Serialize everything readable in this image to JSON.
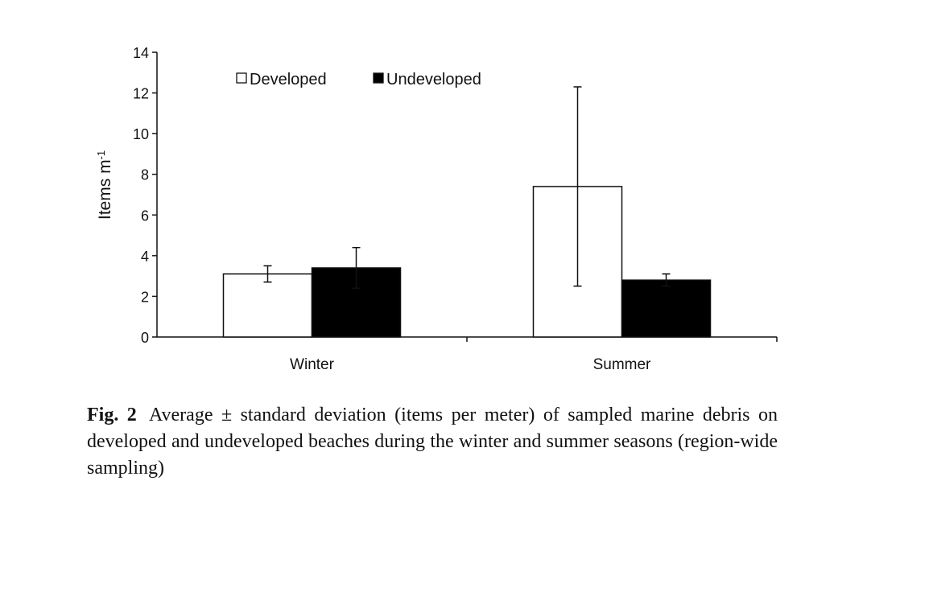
{
  "chart_data": {
    "type": "bar",
    "categories": [
      "Winter",
      "Summer"
    ],
    "series": [
      {
        "name": "Developed",
        "values": [
          3.1,
          7.4
        ],
        "error": [
          0.4,
          4.9
        ],
        "color": "#ffffff"
      },
      {
        "name": "Undeveloped",
        "values": [
          3.4,
          2.8
        ],
        "error": [
          1.0,
          0.3
        ],
        "color": "#000000"
      }
    ],
    "ylabel": "Items m",
    "ylabel_superscript": "-1",
    "ylim": [
      0,
      14
    ],
    "yticks": [
      "0",
      "2",
      "4",
      "6",
      "8",
      "10",
      "12",
      "14"
    ],
    "grid": false,
    "legend_position": "top"
  },
  "caption": {
    "label": "Fig. 2",
    "text": "Average ± standard deviation (items per meter) of sampled marine debris on developed and undeveloped beaches during the winter and summer seasons (region-wide sampling)"
  }
}
